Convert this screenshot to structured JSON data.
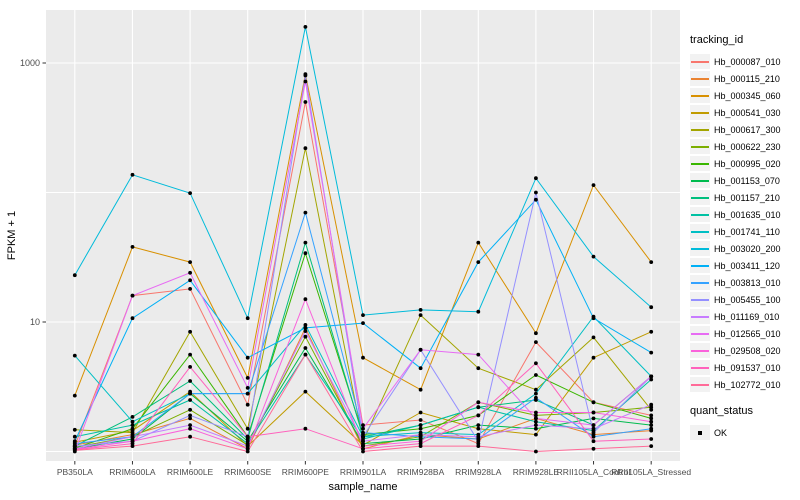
{
  "chart_data": {
    "type": "line",
    "title": "",
    "xlabel": "sample_name",
    "ylabel": "FPKM + 1",
    "y_scale": "log10",
    "ylim": [
      1,
      2560
    ],
    "grid": "on",
    "panel_bg": "#EBEBEB",
    "grid_color": "#FFFFFF",
    "tick_label_color": "#4D4D4D",
    "point_color": "#000000",
    "y_ticks": [
      {
        "value": 10,
        "label": "10"
      },
      {
        "value": 1000,
        "label": "1000"
      }
    ],
    "y_gridlines": [
      1,
      10,
      100,
      1000
    ],
    "categories": [
      "PB350LA",
      "RRIM600LA",
      "RRIM600LE",
      "RRIM600SE",
      "RRIM600PE",
      "RRIM901LA",
      "RRIM928BA",
      "RRIM928LA",
      "RRIM928LE",
      "RRII105LA_Control",
      "RRII105LA_Stressed"
    ],
    "legend_position": "right",
    "series": [
      {
        "name": "Hb_000087_010",
        "color": "#F8766D",
        "values": [
          1.1,
          16,
          18,
          2.3,
          500,
          1.6,
          1.75,
          1.15,
          7,
          2.4,
          1.9
        ]
      },
      {
        "name": "Hb_000115_210",
        "color": "#EA8331",
        "values": [
          1.12,
          1.35,
          1.8,
          1.05,
          9,
          1.05,
          1.35,
          1.25,
          1.8,
          1.35,
          1.45
        ]
      },
      {
        "name": "Hb_000345_060",
        "color": "#D89000",
        "values": [
          2.7,
          38,
          29,
          3.7,
          820,
          5.3,
          3,
          41,
          8.2,
          114,
          29
        ]
      },
      {
        "name": "Hb_000541_030",
        "color": "#C09B00",
        "values": [
          1.18,
          1.45,
          2.9,
          1.1,
          2.9,
          1.12,
          2,
          1.5,
          1.35,
          5.3,
          8.4
        ]
      },
      {
        "name": "Hb_000617_300",
        "color": "#A3A500",
        "values": [
          1.47,
          1.4,
          8.4,
          1.5,
          220,
          1.2,
          11.3,
          4.4,
          3,
          7.6,
          2.1
        ]
      },
      {
        "name": "Hb_000622_230",
        "color": "#7CAE00",
        "values": [
          1.08,
          1.3,
          2.1,
          1.12,
          7.7,
          1.1,
          1.3,
          2.4,
          1.9,
          2,
          2.2
        ]
      },
      {
        "name": "Hb_000995_020",
        "color": "#39B600",
        "values": [
          1.06,
          1.5,
          5.6,
          1.3,
          34,
          1.35,
          1.5,
          1.9,
          3.9,
          2.4,
          1.8
        ]
      },
      {
        "name": "Hb_001153_070",
        "color": "#00BB4E",
        "values": [
          1.05,
          1.25,
          2.8,
          1.2,
          6.3,
          1.15,
          1.25,
          1.6,
          1.5,
          1.8,
          1.6
        ]
      },
      {
        "name": "Hb_001157_210",
        "color": "#00BF7D",
        "values": [
          1.1,
          1.85,
          3.5,
          1.25,
          41,
          1.3,
          1.6,
          2.2,
          2.5,
          1.6,
          3.8
        ]
      },
      {
        "name": "Hb_001635_010",
        "color": "#00C1A3",
        "values": [
          1.3,
          1.6,
          2.5,
          1.15,
          5.6,
          1.25,
          1.6,
          2.2,
          1.7,
          1.45,
          3.6
        ]
      },
      {
        "name": "Hb_001741_110",
        "color": "#00BFC4",
        "values": [
          5.5,
          1.7,
          2.8,
          2.8,
          9.5,
          1.3,
          1.4,
          1.35,
          2.8,
          11,
          3.8
        ]
      },
      {
        "name": "Hb_003020_200",
        "color": "#00BBDA",
        "values": [
          23,
          137,
          99,
          10.7,
          1900,
          11.3,
          12.4,
          12,
          129,
          32,
          13
        ]
      },
      {
        "name": "Hb_003411_120",
        "color": "#00B0F6",
        "values": [
          1.2,
          10.7,
          21,
          5.3,
          9,
          9.8,
          4.4,
          29,
          88,
          10.7,
          5.8
        ]
      },
      {
        "name": "Hb_003813_010",
        "color": "#35A2FF",
        "values": [
          1.15,
          1.3,
          2.8,
          2.8,
          70,
          1.4,
          1.3,
          1.25,
          2.6,
          1.3,
          1.5
        ]
      },
      {
        "name": "Hb_005455_100",
        "color": "#9590FF",
        "values": [
          1.1,
          1.2,
          1.9,
          1.3,
          800,
          1.3,
          6.1,
          1.2,
          100,
          1.4,
          3.8
        ]
      },
      {
        "name": "Hb_011169_010",
        "color": "#C77CFF",
        "values": [
          1.05,
          1.3,
          1.6,
          1.1,
          8.5,
          1.2,
          1.35,
          1.3,
          1.6,
          1.5,
          2.3
        ]
      },
      {
        "name": "Hb_012565_010",
        "color": "#E76BF3",
        "values": [
          1,
          16,
          24,
          3.1,
          720,
          1.5,
          6.1,
          5.6,
          1.8,
          1.6,
          3.8
        ]
      },
      {
        "name": "Hb_029508_020",
        "color": "#FA62DB",
        "values": [
          1.04,
          1.2,
          1.5,
          1.05,
          15,
          1.1,
          1.2,
          2.4,
          2,
          2,
          1.7
        ]
      },
      {
        "name": "Hb_091537_010",
        "color": "#FF62BC",
        "values": [
          1.03,
          1.15,
          4.5,
          1.3,
          1.5,
          1.05,
          1.15,
          1.9,
          4.8,
          1.2,
          1.25
        ]
      },
      {
        "name": "Hb_102772_010",
        "color": "#FF6A98",
        "values": [
          1.02,
          1.1,
          1.3,
          1,
          5.6,
          1,
          1.1,
          1.1,
          1,
          1.05,
          1.1
        ]
      }
    ],
    "legend": {
      "title": "tracking_id"
    },
    "legend2": {
      "title": "quant_status",
      "items": [
        {
          "label": "OK"
        }
      ]
    }
  }
}
